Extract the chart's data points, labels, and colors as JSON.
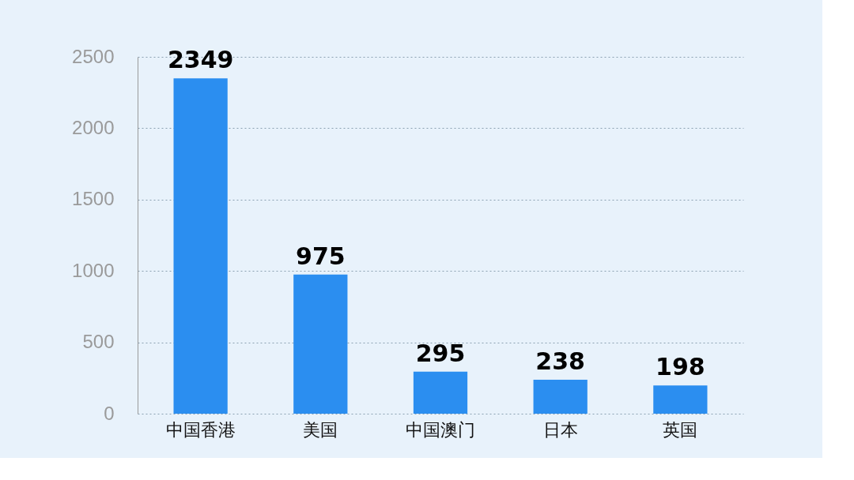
{
  "chart_data": {
    "type": "bar",
    "categories": [
      "中国香港",
      "美国",
      "中国澳门",
      "日本",
      "英国"
    ],
    "values": [
      2349,
      975,
      295,
      238,
      198
    ],
    "color": "#2b8ef0",
    "ylim": [
      0,
      2500
    ],
    "yticks": [
      0,
      500,
      1000,
      1500,
      2000,
      2500
    ],
    "grid": "y",
    "data_labels": true
  }
}
